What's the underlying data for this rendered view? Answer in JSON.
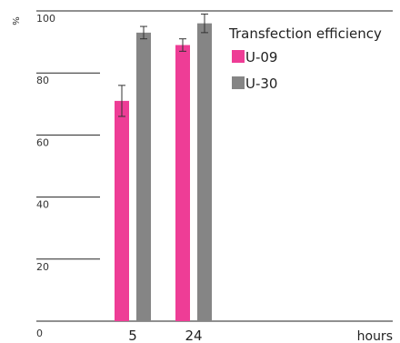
{
  "chart_data": {
    "type": "bar",
    "ylabel": "%",
    "xlabel": "hours",
    "ylim": [
      0,
      100
    ],
    "yticks": [
      "0",
      "20",
      "40",
      "60",
      "80",
      "100"
    ],
    "categories": [
      "5",
      "24"
    ],
    "legend_title": "Transfection efficiency",
    "legend_position": "top-right",
    "grid": "partial horizontal lines at ticks",
    "series": [
      {
        "name": "U-09",
        "color": "#ee3d96",
        "values": [
          71,
          89
        ],
        "errors": [
          5,
          2
        ]
      },
      {
        "name": "U-30",
        "color": "#858585",
        "values": [
          93,
          96
        ],
        "errors": [
          2,
          3
        ]
      }
    ]
  }
}
